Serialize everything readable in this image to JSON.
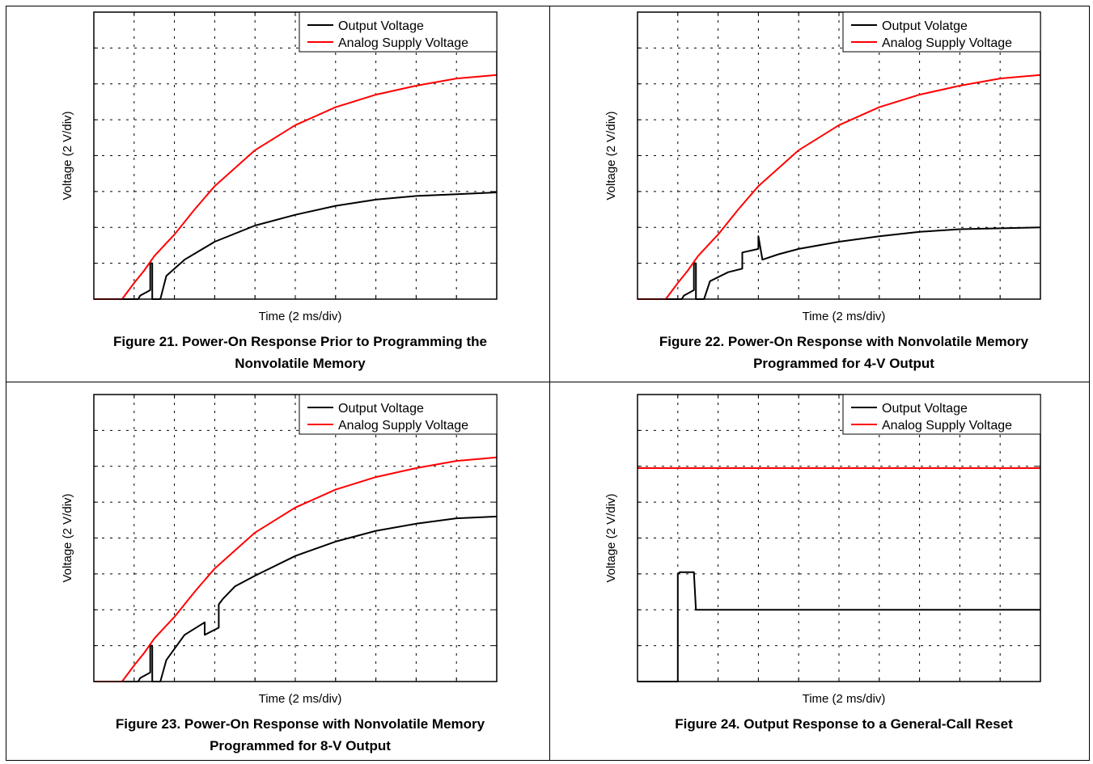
{
  "chart_data": [
    {
      "type": "line",
      "xlabel": "Time (2 ms/div)",
      "ylabel": "Voltage (2 V/div)",
      "xlim": [
        0,
        20
      ],
      "ylim": [
        -2,
        14
      ],
      "grid": true,
      "legend": "top-right",
      "caption_line1": "Figure 21. Power-On Response Prior to Programming the",
      "caption_line2": "Nonvolatile Memory",
      "series": [
        {
          "name": "Output Voltage",
          "color": "#000000",
          "x": [
            0,
            2.2,
            2.3,
            2.8,
            2.8,
            2.9,
            2.9,
            3.3,
            3.6,
            4.5,
            6,
            8,
            10,
            12,
            14,
            16,
            18,
            20
          ],
          "y": [
            -2,
            -2,
            -1.8,
            -1.5,
            0,
            0,
            -2,
            -2,
            -0.7,
            0.2,
            1.2,
            2.1,
            2.7,
            3.2,
            3.55,
            3.75,
            3.85,
            3.95
          ]
        },
        {
          "name": "Analog Supply Voltage",
          "color": "#ff0000",
          "x": [
            0,
            1.4,
            2,
            2.5,
            3,
            3.5,
            4,
            5,
            6,
            7,
            8,
            9,
            10,
            12,
            14,
            16,
            18,
            20
          ],
          "y": [
            -2,
            -2,
            -1.1,
            -0.4,
            0.4,
            1,
            1.6,
            3,
            4.3,
            5.3,
            6.3,
            7,
            7.7,
            8.7,
            9.4,
            9.9,
            10.3,
            10.5
          ]
        }
      ]
    },
    {
      "type": "line",
      "xlabel": "Time (2 ms/div)",
      "ylabel": "Voltage (2 V/div)",
      "xlim": [
        0,
        20
      ],
      "ylim": [
        -2,
        14
      ],
      "grid": true,
      "legend": "top-right",
      "caption_line1": "Figure 22. Power-On Response with Nonvolatile Memory",
      "caption_line2": "Programmed for 4-V Output",
      "series": [
        {
          "name": "Output Volatge",
          "color": "#000000",
          "x": [
            0,
            2.2,
            2.3,
            2.8,
            2.8,
            2.9,
            2.9,
            3.3,
            3.6,
            4.5,
            5.2,
            5.2,
            6,
            6,
            6.2,
            7,
            8,
            10,
            12,
            14,
            16,
            18,
            20
          ],
          "y": [
            -2,
            -2,
            -1.8,
            -1.5,
            0,
            0,
            -2,
            -2,
            -1,
            -0.5,
            -0.3,
            0.6,
            0.8,
            1.5,
            0.2,
            0.5,
            0.8,
            1.2,
            1.5,
            1.75,
            1.9,
            1.95,
            2
          ]
        },
        {
          "name": "Analog Supply Voltage",
          "color": "#ff0000",
          "x": [
            0,
            1.4,
            2,
            2.5,
            3,
            3.5,
            4,
            5,
            6,
            7,
            8,
            9,
            10,
            12,
            14,
            16,
            18,
            20
          ],
          "y": [
            -2,
            -2,
            -1.1,
            -0.4,
            0.4,
            1,
            1.6,
            3,
            4.3,
            5.3,
            6.3,
            7,
            7.7,
            8.7,
            9.4,
            9.9,
            10.3,
            10.5
          ]
        }
      ]
    },
    {
      "type": "line",
      "xlabel": "Time (2 ms/div)",
      "ylabel": "Voltage (2 V/div)",
      "xlim": [
        0,
        20
      ],
      "ylim": [
        -2,
        14
      ],
      "grid": true,
      "legend": "top-right",
      "caption_line1": "Figure 23. Power-On Response with Nonvolatile Memory",
      "caption_line2": "Programmed for 8-V Output",
      "series": [
        {
          "name": "Output Voltage",
          "color": "#000000",
          "x": [
            0,
            2.2,
            2.3,
            2.8,
            2.8,
            2.9,
            2.9,
            3.3,
            3.6,
            4.5,
            5.5,
            5.5,
            6.2,
            6.2,
            6.4,
            7,
            8,
            10,
            12,
            14,
            16,
            18,
            20
          ],
          "y": [
            -2,
            -2,
            -1.8,
            -1.5,
            0,
            0,
            -2,
            -2,
            -0.8,
            0.6,
            1.3,
            0.6,
            1,
            2.3,
            2.6,
            3.3,
            3.9,
            5,
            5.8,
            6.4,
            6.8,
            7.1,
            7.2
          ]
        },
        {
          "name": "Analog Supply Voltage",
          "color": "#ff0000",
          "x": [
            0,
            1.4,
            2,
            2.5,
            3,
            3.5,
            4,
            5,
            6,
            7,
            8,
            9,
            10,
            12,
            14,
            16,
            18,
            20
          ],
          "y": [
            -2,
            -2,
            -1.1,
            -0.4,
            0.4,
            1,
            1.6,
            3,
            4.3,
            5.3,
            6.3,
            7,
            7.7,
            8.7,
            9.4,
            9.9,
            10.3,
            10.5
          ]
        }
      ]
    },
    {
      "type": "line",
      "xlabel": "Time (2 ms/div)",
      "ylabel": "Voltage (2 V/div)",
      "xlim": [
        0,
        20
      ],
      "ylim": [
        -2,
        14
      ],
      "grid": true,
      "legend": "top-right",
      "caption_line1": "Figure 24. Output Response to a General-Call Reset",
      "caption_line2": "",
      "series": [
        {
          "name": "Output Voltage",
          "color": "#000000",
          "x": [
            0,
            2,
            2,
            2.1,
            2.8,
            2.9,
            3,
            20
          ],
          "y": [
            -2,
            -2,
            4,
            4.1,
            4.1,
            2,
            2,
            2
          ]
        },
        {
          "name": "Analog Supply Voltage",
          "color": "#ff0000",
          "x": [
            0,
            20
          ],
          "y": [
            9.9,
            9.9
          ]
        }
      ]
    }
  ]
}
